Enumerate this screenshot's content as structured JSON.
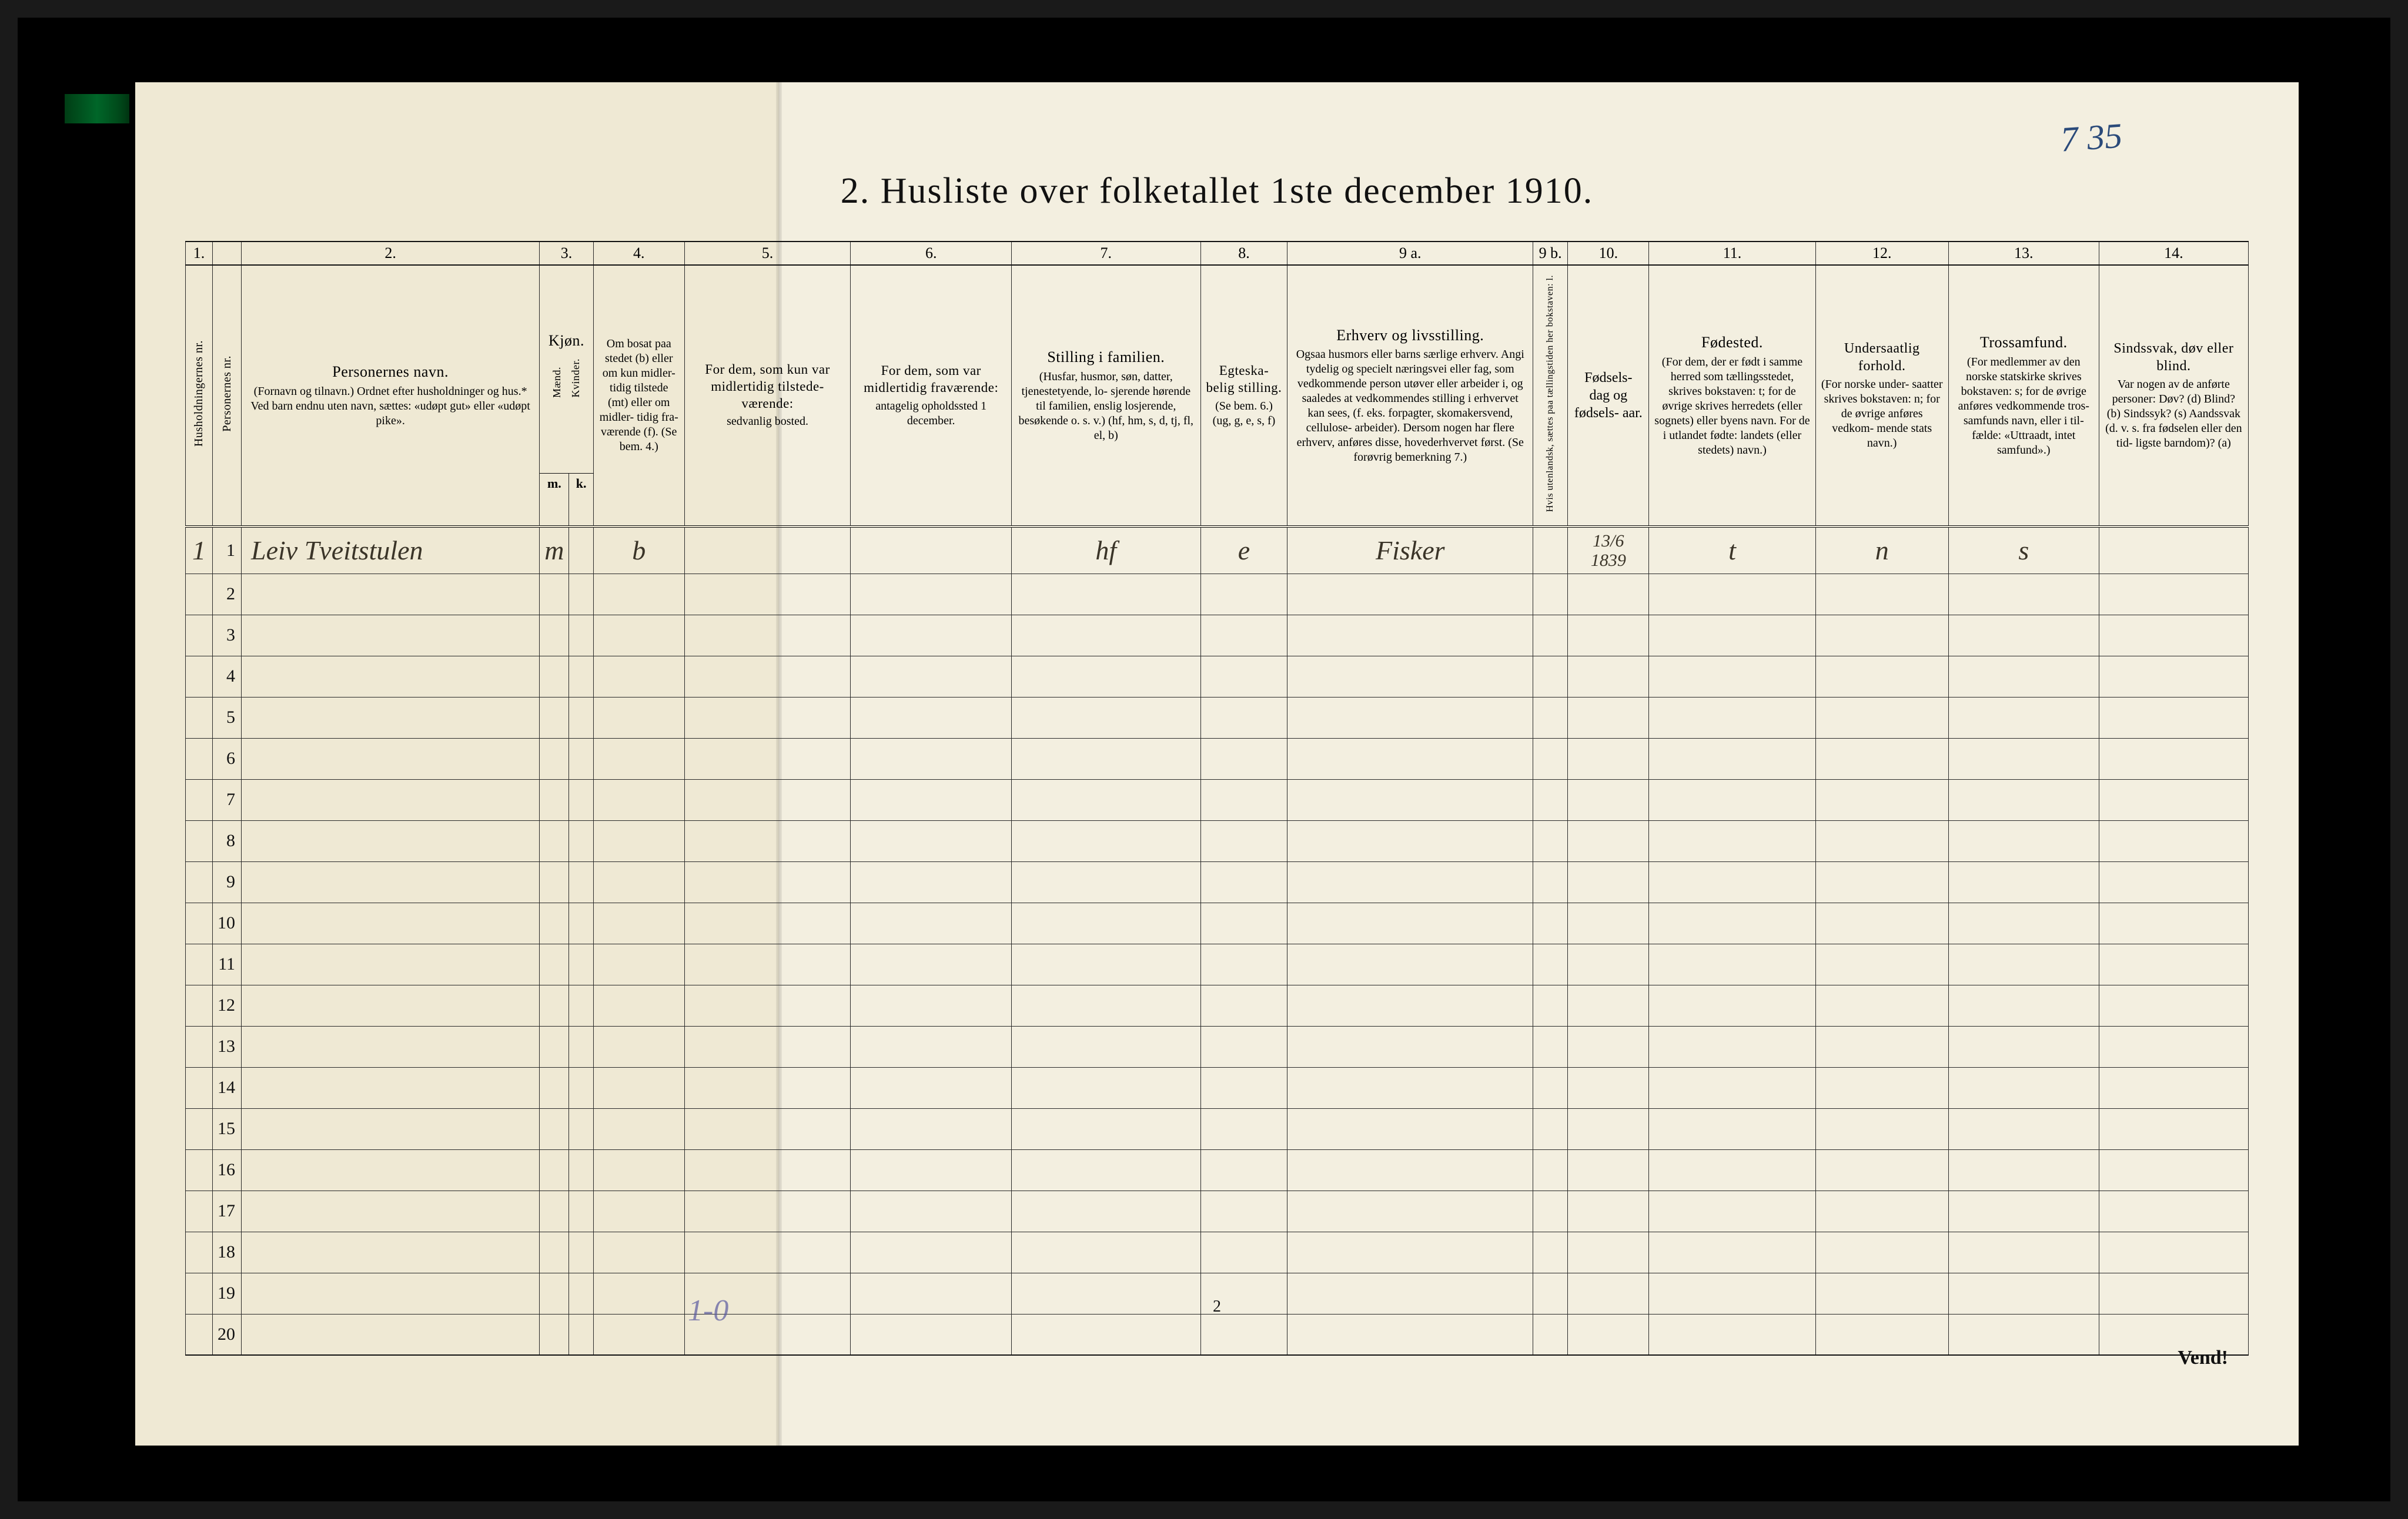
{
  "annotation_topright": "7 35",
  "title": "2.  Husliste over folketallet 1ste december 1910.",
  "colnums": [
    "1.",
    "",
    "2.",
    "3.",
    "4.",
    "5.",
    "6.",
    "7.",
    "8.",
    "9 a.",
    "9 b.",
    "10.",
    "11.",
    "12.",
    "13.",
    "14."
  ],
  "headers": {
    "c1a": "Husholdningernes nr.",
    "c1b": "Personernes nr.",
    "c2_title": "Personernes navn.",
    "c2_sub": "(Fornavn og tilnavn.)\nOrdnet efter husholdninger og hus.*\nVed barn endnu uten navn, sættes: «udøpt gut»\neller «udøpt pike».",
    "c3_title": "Kjøn.",
    "c3_m_label": "Mænd.",
    "c3_k_label": "Kvinder.",
    "c3_mk": [
      "m.",
      "k."
    ],
    "c4_title": "Om bosat\npaa stedet\n(b) eller om\nkun midler-\ntidig tilstede\n(mt) eller\nom midler-\ntidig fra-\nværende (f).\n(Se bem. 4.)",
    "c5_title": "For dem, som kun var\nmidlertidig tilstede-\nværende:",
    "c5_sub": "sedvanlig bosted.",
    "c6_title": "For dem, som var\nmidlertidig\nfraværende:",
    "c6_sub": "antagelig opholdssted\n1 december.",
    "c7_title": "Stilling i familien.",
    "c7_sub": "(Husfar, husmor, søn,\ndatter, tjenestetyende, lo-\nsjerende hørende til familien,\nenslig losjerende, besøkende\no. s. v.)\n(hf, hm, s, d, tj, fl,\nel, b)",
    "c8_title": "Egteska-\nbelig\nstilling.",
    "c8_sub": "(Se bem. 6.)\n(ug, g,\ne, s, f)",
    "c9a_title": "Erhverv og livsstilling.",
    "c9a_sub": "Ogsaa husmors eller barns særlige erhverv.\nAngi tydelig og specielt næringsvei eller fag, som\nvedkommende person utøver eller arbeider i,\nog saaledes at vedkommendes stilling i erhvervet kan\nsees, (f. eks. forpagter, skomakersvend, cellulose-\narbeider). Dersom nogen har flere erhverv,\nanføres disse, hovederhvervet først.\n(Se forøvrig bemerkning 7.)",
    "c9b_title": "Hvis utenlandsk, sættes\npaa tællingstiden her\nbokstaven: l.",
    "c10_title": "Fødsels-\ndag\nog\nfødsels-\naar.",
    "c11_title": "Fødested.",
    "c11_sub": "(For dem, der er født\ni samme herred som\ntællingsstedet,\nskrives bokstaven: t;\nfor de øvrige skrives\nherredets (eller sognets)\neller byens navn.\nFor de i utlandet fødte:\nlandets (eller stedets)\nnavn.)",
    "c12_title": "Undersaatlig\nforhold.",
    "c12_sub": "(For norske under-\nsaatter skrives\nbokstaven: n;\nfor de øvrige\nanføres vedkom-\nmende stats navn.)",
    "c13_title": "Trossamfund.",
    "c13_sub": "(For medlemmer av\nden norske statskirke\nskrives bokstaven: s;\nfor de øvrige anføres\nvedkommende tros-\nsamfunds navn, eller i til-\nfælde: «Uttraadt, intet\nsamfund».)",
    "c14_title": "Sindssvak, døv\neller blind.",
    "c14_sub": "Var nogen av de anførte\npersoner:\nDøv?            (d)\nBlind?          (b)\nSindssyk?    (s)\nAandssvak (d. v. s. fra\nfødselen eller den tid-\nligste barndom)? (a)"
  },
  "rows": [
    {
      "num": "1",
      "name": "Leiv Tveitstulen",
      "mk": "m",
      "c4": "b",
      "c7": "hf",
      "c8": "e",
      "c9a": "Fisker",
      "c10": "13/6\n1839",
      "c11": "t",
      "c12": "n",
      "c13": "s"
    },
    {
      "num": "2"
    },
    {
      "num": "3"
    },
    {
      "num": "4"
    },
    {
      "num": "5"
    },
    {
      "num": "6"
    },
    {
      "num": "7"
    },
    {
      "num": "8"
    },
    {
      "num": "9"
    },
    {
      "num": "10"
    },
    {
      "num": "11"
    },
    {
      "num": "12"
    },
    {
      "num": "13"
    },
    {
      "num": "14"
    },
    {
      "num": "15"
    },
    {
      "num": "16"
    },
    {
      "num": "17"
    },
    {
      "num": "18"
    },
    {
      "num": "19"
    },
    {
      "num": "20"
    }
  ],
  "footer": {
    "pencil": "1-0",
    "pagenum": "2",
    "vend": "Vend!"
  },
  "colors": {
    "paper": "#f3efe0",
    "paper_left": "#efe9d4",
    "ink": "#111111",
    "handwriting": "#3a3428",
    "pencil": "#5a5aa0"
  }
}
